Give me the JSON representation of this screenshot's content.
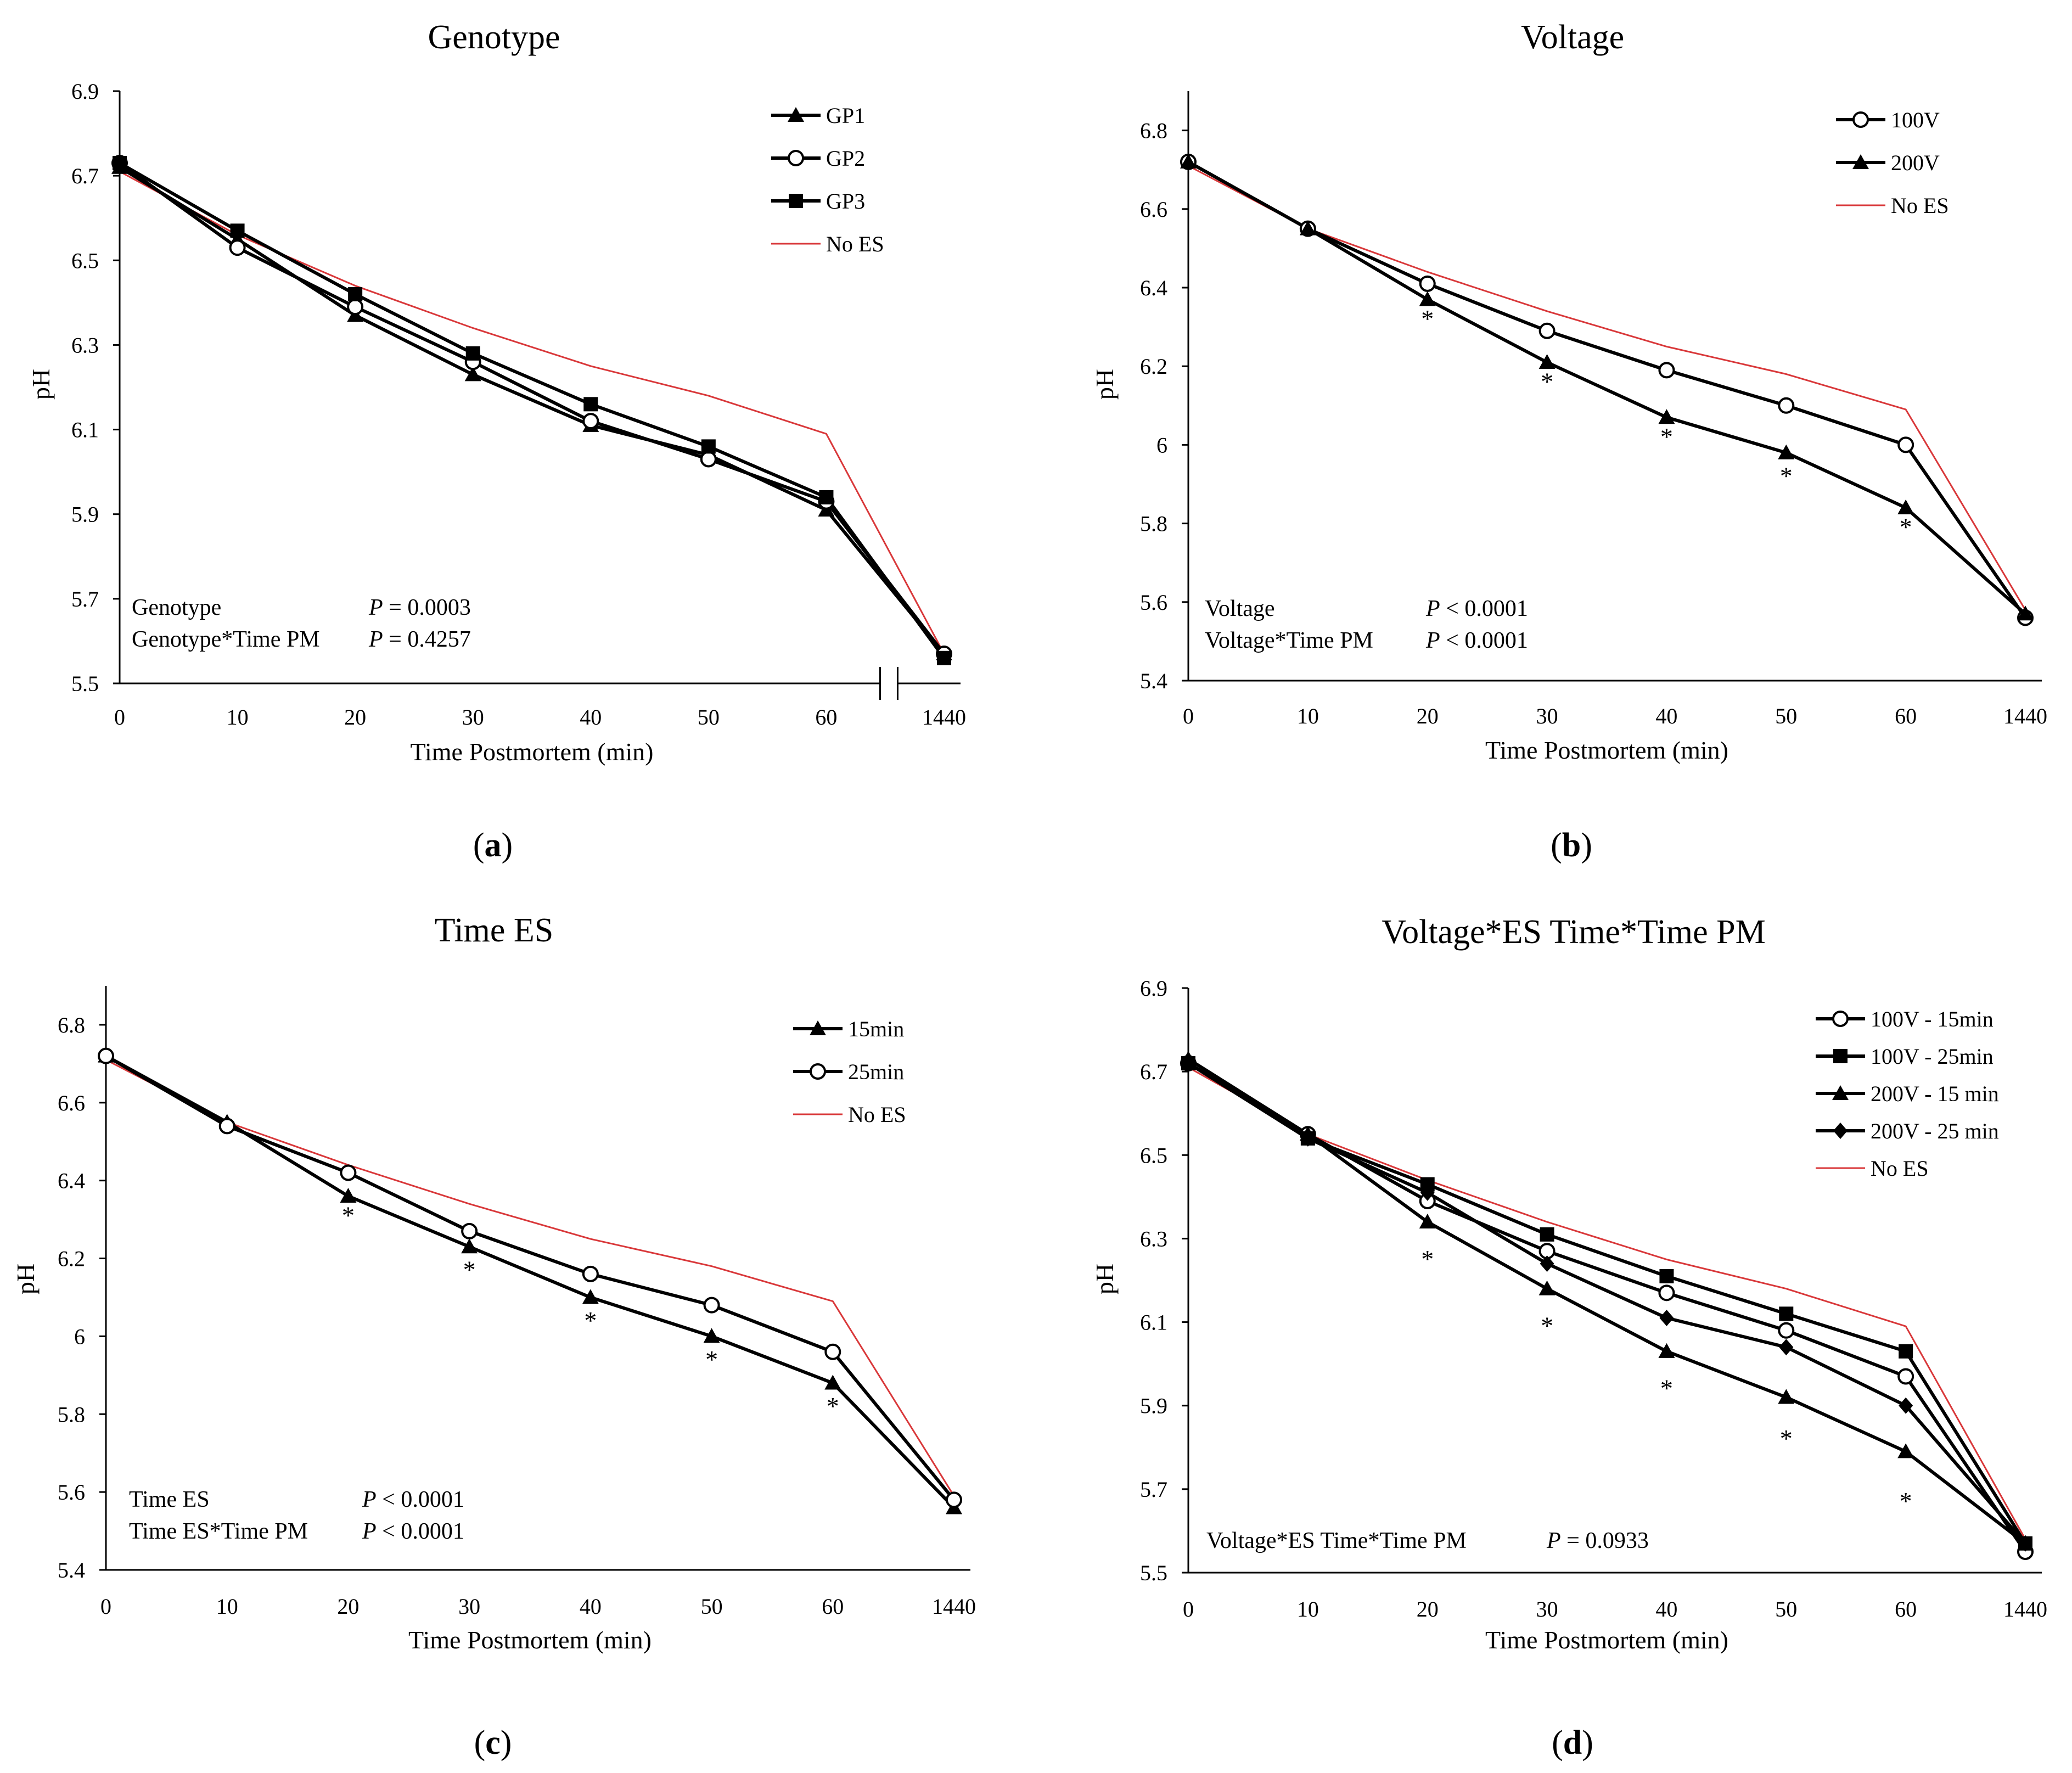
{
  "chart_data": [
    {
      "type": "line",
      "title": "Genotype",
      "panel_label": "a",
      "xlabel": "Time  Postmortem (min)",
      "ylabel": "pH",
      "x_ticks": [
        "0",
        "10",
        "20",
        "30",
        "40",
        "50",
        "60",
        "1440"
      ],
      "y_ticks": [
        "5.5",
        "5.7",
        "5.9",
        "6.1",
        "6.3",
        "6.5",
        "6.7",
        "6.9"
      ],
      "ylim": [
        5.5,
        6.9
      ],
      "axis_break": true,
      "legend_position": "top-right",
      "series": [
        {
          "name": "GP1",
          "marker": "triangle",
          "values": [
            6.72,
            6.55,
            6.37,
            6.23,
            6.11,
            6.04,
            5.91,
            5.57
          ]
        },
        {
          "name": "GP2",
          "marker": "circle-open",
          "values": [
            6.73,
            6.53,
            6.39,
            6.26,
            6.12,
            6.03,
            5.93,
            5.57
          ]
        },
        {
          "name": "GP3",
          "marker": "square",
          "values": [
            6.73,
            6.57,
            6.42,
            6.28,
            6.16,
            6.06,
            5.94,
            5.56
          ]
        },
        {
          "name": "No ES",
          "marker": "none",
          "color": "#d9383a",
          "values": [
            6.71,
            6.56,
            6.44,
            6.34,
            6.25,
            6.18,
            6.09,
            5.57
          ]
        }
      ],
      "stats": [
        {
          "label": "Genotype",
          "p": "P",
          "value": " = 0.0003"
        },
        {
          "label": "Genotype*Time  PM",
          "p": "P",
          "value": " = 0.4257"
        }
      ],
      "asterisks": []
    },
    {
      "type": "line",
      "title": "Voltage",
      "panel_label": "b",
      "xlabel": "Time  Postmortem (min)",
      "ylabel": "pH",
      "x_ticks": [
        "0",
        "10",
        "20",
        "30",
        "40",
        "50",
        "60",
        "1440"
      ],
      "y_ticks": [
        "5.4",
        "5.6",
        "5.8",
        "6",
        "6.2",
        "6.4",
        "6.6",
        "6.8"
      ],
      "ylim": [
        5.4,
        6.9
      ],
      "axis_break": false,
      "legend_position": "top-right",
      "series": [
        {
          "name": "100V",
          "marker": "circle-open",
          "values": [
            6.72,
            6.55,
            6.41,
            6.29,
            6.19,
            6.1,
            6.0,
            5.56
          ]
        },
        {
          "name": "200V",
          "marker": "triangle",
          "values": [
            6.72,
            6.55,
            6.37,
            6.21,
            6.07,
            5.98,
            5.84,
            5.57
          ]
        },
        {
          "name": "No ES",
          "marker": "none",
          "color": "#d9383a",
          "values": [
            6.71,
            6.55,
            6.44,
            6.34,
            6.25,
            6.18,
            6.09,
            5.58
          ]
        }
      ],
      "stats": [
        {
          "label": "Voltage",
          "p": "P",
          "value": " < 0.0001"
        },
        {
          "label": "Voltage*Time  PM",
          "p": "P",
          "value": " < 0.0001"
        }
      ],
      "asterisks": [
        {
          "x": 2,
          "y": 6.33
        },
        {
          "x": 3,
          "y": 6.17
        },
        {
          "x": 4,
          "y": 6.03
        },
        {
          "x": 5,
          "y": 5.93
        },
        {
          "x": 6,
          "y": 5.8
        }
      ]
    },
    {
      "type": "line",
      "title": "Time ES",
      "panel_label": "c",
      "xlabel": "Time  Postmortem (min)",
      "ylabel": "pH",
      "x_ticks": [
        "0",
        "10",
        "20",
        "30",
        "40",
        "50",
        "60",
        "1440"
      ],
      "y_ticks": [
        "5.4",
        "5.6",
        "5.8",
        "6",
        "6.2",
        "6.4",
        "6.6",
        "6.8"
      ],
      "ylim": [
        5.4,
        6.9
      ],
      "axis_break": false,
      "legend_position": "top-right",
      "series": [
        {
          "name": "15min",
          "marker": "triangle",
          "values": [
            6.72,
            6.55,
            6.36,
            6.23,
            6.1,
            6.0,
            5.88,
            5.56
          ]
        },
        {
          "name": "25min",
          "marker": "circle-open",
          "values": [
            6.72,
            6.54,
            6.42,
            6.27,
            6.16,
            6.08,
            5.96,
            5.58
          ]
        },
        {
          "name": "No ES",
          "marker": "none",
          "color": "#d9383a",
          "values": [
            6.71,
            6.55,
            6.44,
            6.34,
            6.25,
            6.18,
            6.09,
            5.59
          ]
        }
      ],
      "stats": [
        {
          "label": "Time ES",
          "p": "P",
          "value": " < 0.0001"
        },
        {
          "label": "Time ES*Time  PM",
          "p": "P",
          "value": " < 0.0001"
        }
      ],
      "asterisks": [
        {
          "x": 2,
          "y": 6.32
        },
        {
          "x": 3,
          "y": 6.18
        },
        {
          "x": 4,
          "y": 6.05
        },
        {
          "x": 5,
          "y": 5.95
        },
        {
          "x": 6,
          "y": 5.83
        }
      ]
    },
    {
      "type": "line",
      "title": "Voltage*ES  Time*Time PM",
      "panel_label": "d",
      "xlabel": "Time  Postmortem (min)",
      "ylabel": "pH",
      "x_ticks": [
        "0",
        "10",
        "20",
        "30",
        "40",
        "50",
        "60",
        "1440"
      ],
      "y_ticks": [
        "5.5",
        "5.7",
        "5.9",
        "6.1",
        "6.3",
        "6.5",
        "6.7",
        "6.9"
      ],
      "ylim": [
        5.5,
        6.9
      ],
      "axis_break": false,
      "legend_position": "top-right",
      "series": [
        {
          "name": "100V - 15min",
          "marker": "circle-open",
          "values": [
            6.72,
            6.55,
            6.39,
            6.27,
            6.17,
            6.08,
            5.97,
            5.55
          ]
        },
        {
          "name": "100V - 25min",
          "marker": "square",
          "values": [
            6.72,
            6.54,
            6.43,
            6.31,
            6.21,
            6.12,
            6.03,
            5.57
          ]
        },
        {
          "name": "200V - 15 min",
          "marker": "triangle",
          "values": [
            6.73,
            6.55,
            6.34,
            6.18,
            6.03,
            5.92,
            5.79,
            5.57
          ]
        },
        {
          "name": "200V - 25 min",
          "marker": "diamond",
          "values": [
            6.72,
            6.54,
            6.41,
            6.24,
            6.11,
            6.04,
            5.9,
            5.57
          ]
        },
        {
          "name": "No ES",
          "marker": "none",
          "color": "#d9383a",
          "values": [
            6.71,
            6.55,
            6.44,
            6.34,
            6.25,
            6.18,
            6.09,
            5.58
          ]
        }
      ],
      "stats": [
        {
          "label": "Voltage*ES Time*Time PM",
          "p": "P",
          "value": " = 0.0933"
        }
      ],
      "asterisks": [
        {
          "x": 2,
          "y": 6.26
        },
        {
          "x": 3,
          "y": 6.1
        },
        {
          "x": 4,
          "y": 5.95
        },
        {
          "x": 5,
          "y": 5.83
        },
        {
          "x": 6,
          "y": 5.68
        }
      ]
    }
  ]
}
